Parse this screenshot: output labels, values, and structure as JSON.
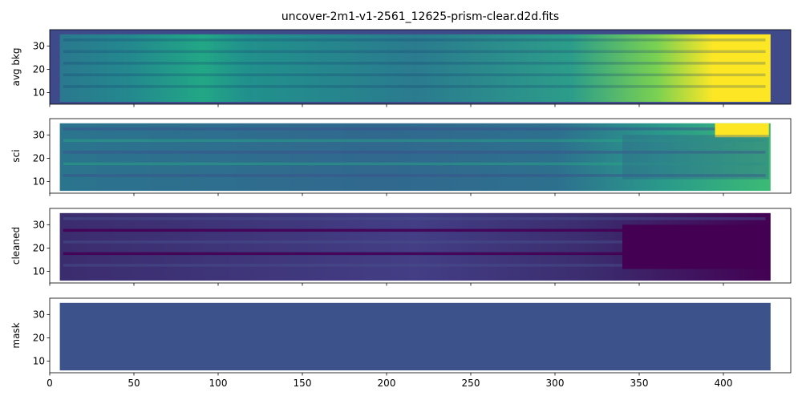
{
  "chart_data": [
    {
      "type": "image",
      "title": "uncover-2m1-v1-2561_12625-prism-clear.d2d.fits",
      "ylabel": "avg bkg",
      "xlim": [
        0,
        440
      ],
      "ylim": [
        5,
        37
      ],
      "xticks": [
        0,
        50,
        100,
        150,
        200,
        250,
        300,
        350,
        400
      ],
      "yticks": [
        10,
        20,
        30
      ]
    },
    {
      "type": "image",
      "ylabel": "sci",
      "xlim": [
        0,
        440
      ],
      "ylim": [
        5,
        37
      ],
      "xticks": [
        0,
        50,
        100,
        150,
        200,
        250,
        300,
        350,
        400
      ],
      "yticks": [
        10,
        20,
        30
      ]
    },
    {
      "type": "image",
      "ylabel": "cleaned",
      "xlim": [
        0,
        440
      ],
      "ylim": [
        5,
        37
      ],
      "xticks": [
        0,
        50,
        100,
        150,
        200,
        250,
        300,
        350,
        400
      ],
      "yticks": [
        10,
        20,
        30
      ]
    },
    {
      "type": "image",
      "ylabel": "mask",
      "xlim": [
        0,
        440
      ],
      "ylim": [
        5,
        37
      ],
      "xticks": [
        0,
        50,
        100,
        150,
        200,
        250,
        300,
        350,
        400
      ],
      "yticks": [
        10,
        20,
        30
      ],
      "xticklabels": true
    }
  ]
}
